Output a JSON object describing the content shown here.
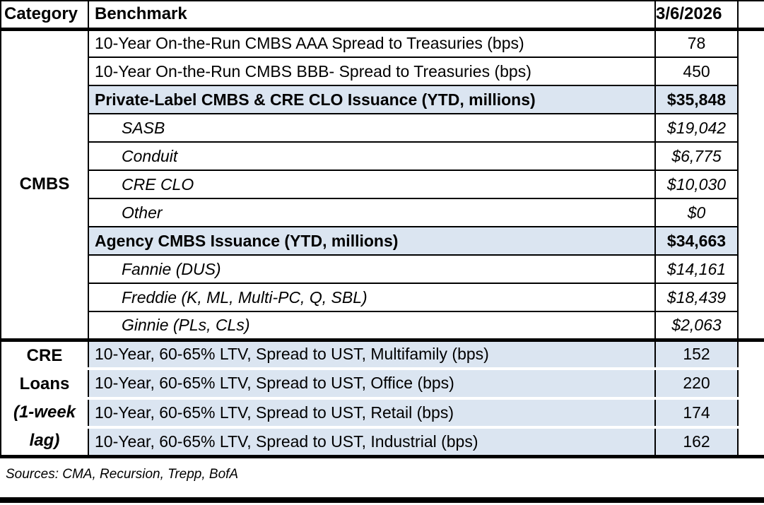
{
  "header": {
    "category": "Category",
    "benchmark": "Benchmark",
    "date": "3/6/2026"
  },
  "category_groups": {
    "cmbs": {
      "label": "CMBS"
    },
    "cre_loans": {
      "line1": "CRE",
      "line2": "Loans",
      "line3": "(1-week",
      "line4": "lag)"
    }
  },
  "rows": [
    {
      "benchmark": "10-Year On-the-Run CMBS AAA Spread to Treasuries (bps)",
      "value": "78"
    },
    {
      "benchmark": "10-Year On-the-Run CMBS BBB- Spread to Treasuries (bps)",
      "value": "450"
    },
    {
      "benchmark": "Private-Label CMBS & CRE CLO Issuance (YTD, millions)",
      "value": "$35,848"
    },
    {
      "benchmark": "SASB",
      "value": "$19,042"
    },
    {
      "benchmark": "Conduit",
      "value": "$6,775"
    },
    {
      "benchmark": "CRE CLO",
      "value": "$10,030"
    },
    {
      "benchmark": "Other",
      "value": "$0"
    },
    {
      "benchmark": "Agency CMBS Issuance (YTD, millions)",
      "value": "$34,663"
    },
    {
      "benchmark": "Fannie (DUS)",
      "value": "$14,161"
    },
    {
      "benchmark": "Freddie (K, ML, Multi-PC, Q, SBL)",
      "value": "$18,439"
    },
    {
      "benchmark": "Ginnie (PLs, CLs)",
      "value": "$2,063"
    },
    {
      "benchmark": "10-Year, 60-65% LTV, Spread to UST, Multifamily (bps)",
      "value": "152"
    },
    {
      "benchmark": "10-Year, 60-65% LTV, Spread to UST, Office (bps)",
      "value": "220"
    },
    {
      "benchmark": "10-Year, 60-65% LTV, Spread to UST, Retail (bps)",
      "value": "174"
    },
    {
      "benchmark": "10-Year, 60-65% LTV, Spread to UST, Industrial (bps)",
      "value": "162"
    }
  ],
  "footer": {
    "sources": "Sources: CMA, Recursion, Trepp, BofA"
  },
  "colors": {
    "highlight_blue": "#DBE5F1",
    "border_black": "#000000",
    "background_white": "#FFFFFF"
  }
}
